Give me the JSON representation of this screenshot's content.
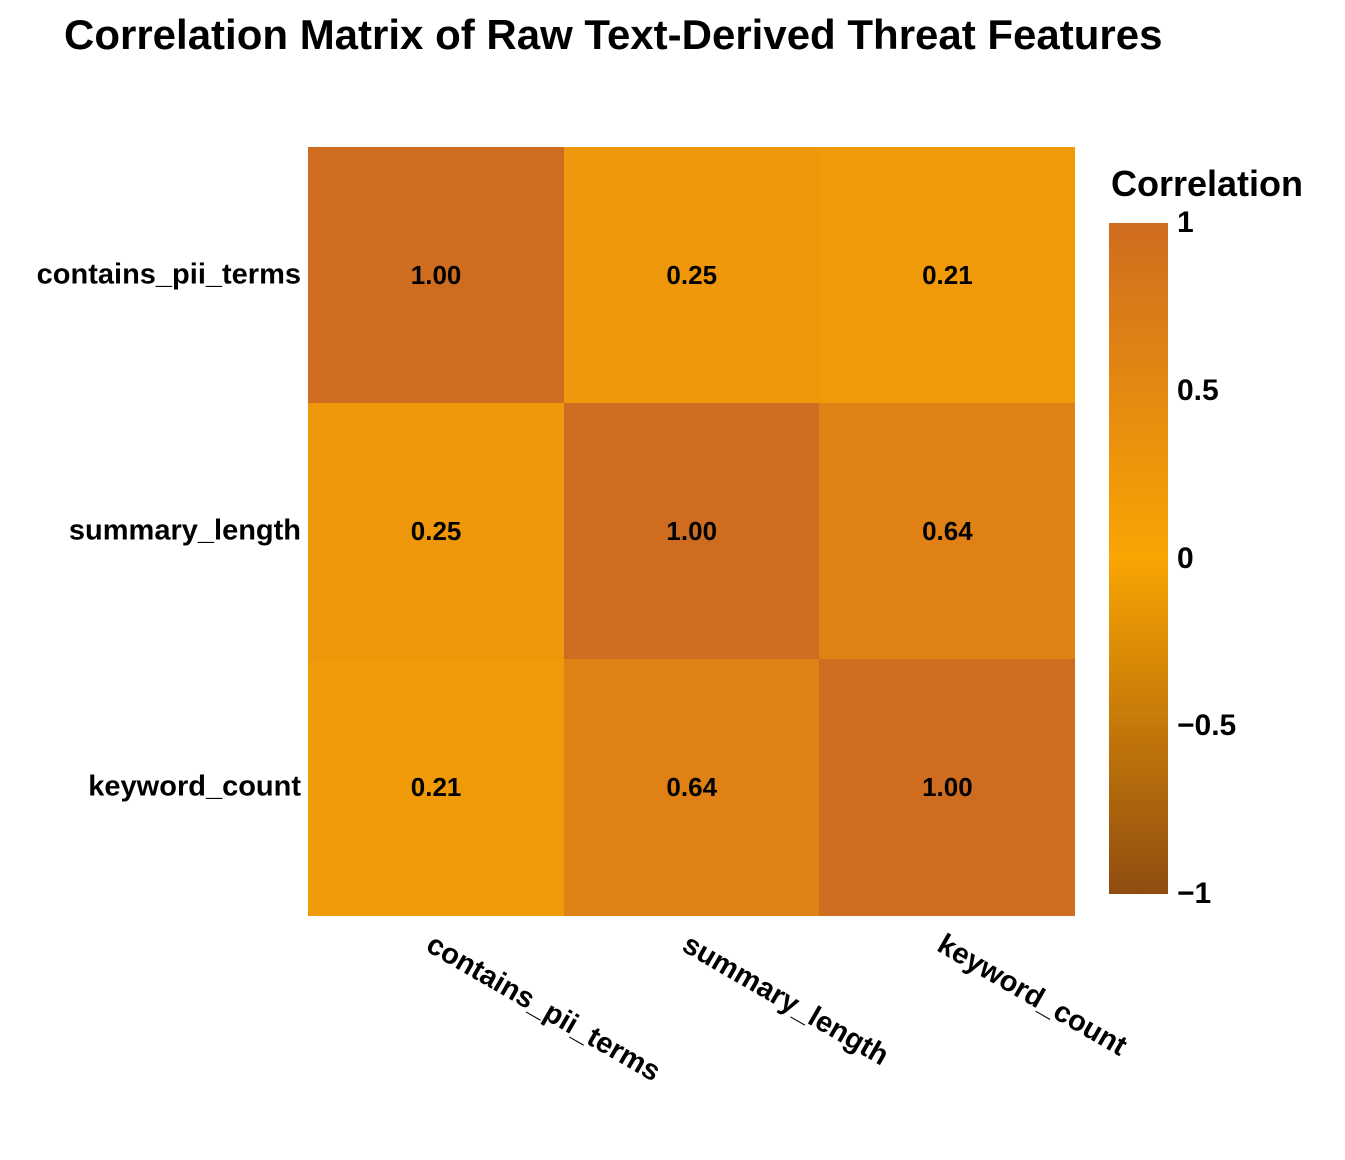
{
  "chart_data": {
    "type": "heatmap",
    "title": "Correlation Matrix of Raw Text-Derived Threat Features",
    "x_categories": [
      "contains_pii_terms",
      "summary_length",
      "keyword_count"
    ],
    "y_categories": [
      "contains_pii_terms",
      "summary_length",
      "keyword_count"
    ],
    "matrix": [
      [
        1.0,
        0.25,
        0.21
      ],
      [
        0.25,
        1.0,
        0.64
      ],
      [
        0.21,
        0.64,
        1.0
      ]
    ],
    "cell_labels": [
      [
        "1.00",
        "0.25",
        "0.21"
      ],
      [
        "0.25",
        "1.00",
        "0.64"
      ],
      [
        "0.21",
        "0.64",
        "1.00"
      ]
    ],
    "value_range": [
      -1,
      1
    ],
    "colormap": {
      "neg_color": "#8f4c10",
      "mid_color": "#f9a503",
      "pos_color": "#d06c1f"
    },
    "colorbar": {
      "title": "Correlation",
      "ticks": [
        {
          "label": "1",
          "value": 1
        },
        {
          "label": "0.5",
          "value": 0.5
        },
        {
          "label": "0",
          "value": 0
        },
        {
          "label": "−0.5",
          "value": -0.5
        },
        {
          "label": "−1",
          "value": -1
        }
      ]
    },
    "x_tick_angle_deg": 30,
    "text_color": "#000000",
    "background": "#ffffff",
    "grid": false,
    "legend_position": "right"
  }
}
